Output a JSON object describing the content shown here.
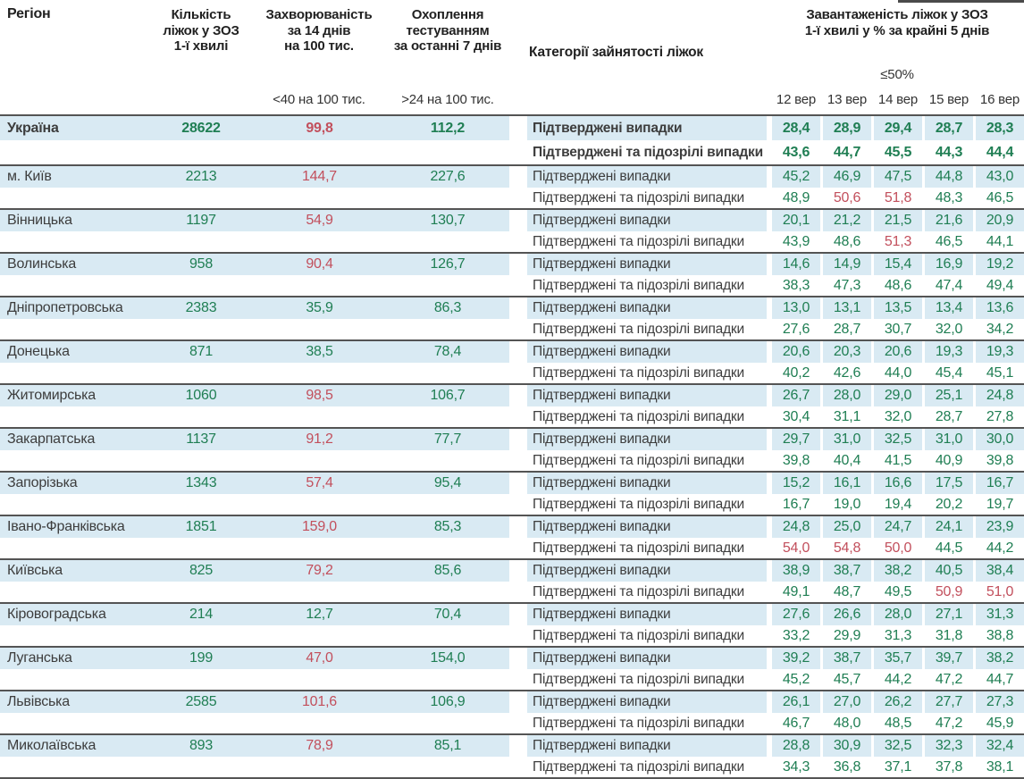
{
  "colors": {
    "positive_green": "#1f7e53",
    "alert_red": "#c24f5c",
    "row_highlight_blue": "#d9eaf3",
    "divider_dark": "#545454",
    "text_dark": "#3d3d3d"
  },
  "chart_data": {
    "type": "table",
    "title": "Завантаженість ліжок у ЗОЗ 1-ї хвилі",
    "header": {
      "region": "Регіон",
      "beds": "Кількість\nліжок у ЗОЗ\n1-ї хвилі",
      "incidence": "Захворюваність\nза 14 днів\nна 100 тис.",
      "testing": "Охоплення\nтестуванням\nза останні 7 днів",
      "categories": "Категорії зайнятості ліжок",
      "occupancy": "Завантаженість ліжок у ЗОЗ\n1-ї хвилі у % за крайні 5 днів",
      "incidence_threshold": "<40 на 100 тис.",
      "testing_threshold": ">24 на 100 тис.",
      "occupancy_threshold": "≤50%",
      "dates": [
        "12 вер",
        "13 вер",
        "14 вер",
        "15 вер",
        "16 вер"
      ]
    },
    "row_labels": {
      "confirmed": "Підтверджені випадки",
      "suspected": "Підтверджені та підозрілі випадки"
    },
    "rows": [
      {
        "region": "Україна",
        "bold": true,
        "beds": "28622",
        "incidence": "99,8",
        "incidence_red": true,
        "testing": "112,2",
        "confirmed": [
          "28,4",
          "28,9",
          "29,4",
          "28,7",
          "28,3"
        ],
        "suspected": [
          "43,6",
          "44,7",
          "45,5",
          "44,3",
          "44,4"
        ],
        "suspected_red": [
          false,
          false,
          false,
          false,
          false
        ]
      },
      {
        "region": "м. Київ",
        "beds": "2213",
        "incidence": "144,7",
        "incidence_red": true,
        "testing": "227,6",
        "confirmed": [
          "45,2",
          "46,9",
          "47,5",
          "44,8",
          "43,0"
        ],
        "suspected": [
          "48,9",
          "50,6",
          "51,8",
          "48,3",
          "46,5"
        ],
        "suspected_red": [
          false,
          true,
          true,
          false,
          false
        ]
      },
      {
        "region": "Вінницька",
        "beds": "1197",
        "incidence": "54,9",
        "incidence_red": true,
        "testing": "130,7",
        "confirmed": [
          "20,1",
          "21,2",
          "21,5",
          "21,6",
          "20,9"
        ],
        "suspected": [
          "43,9",
          "48,6",
          "51,3",
          "46,5",
          "44,1"
        ],
        "suspected_red": [
          false,
          false,
          true,
          false,
          false
        ]
      },
      {
        "region": "Волинська",
        "beds": "958",
        "incidence": "90,4",
        "incidence_red": true,
        "testing": "126,7",
        "confirmed": [
          "14,6",
          "14,9",
          "15,4",
          "16,9",
          "19,2"
        ],
        "suspected": [
          "38,3",
          "47,3",
          "48,6",
          "47,4",
          "49,4"
        ],
        "suspected_red": [
          false,
          false,
          false,
          false,
          false
        ]
      },
      {
        "region": "Дніпропетровська",
        "beds": "2383",
        "incidence": "35,9",
        "incidence_red": false,
        "testing": "86,3",
        "confirmed": [
          "13,0",
          "13,1",
          "13,5",
          "13,4",
          "13,6"
        ],
        "suspected": [
          "27,6",
          "28,7",
          "30,7",
          "32,0",
          "34,2"
        ],
        "suspected_red": [
          false,
          false,
          false,
          false,
          false
        ]
      },
      {
        "region": "Донецька",
        "beds": "871",
        "incidence": "38,5",
        "incidence_red": false,
        "testing": "78,4",
        "confirmed": [
          "20,6",
          "20,3",
          "20,6",
          "19,3",
          "19,3"
        ],
        "suspected": [
          "40,2",
          "42,6",
          "44,0",
          "45,4",
          "45,1"
        ],
        "suspected_red": [
          false,
          false,
          false,
          false,
          false
        ]
      },
      {
        "region": "Житомирська",
        "beds": "1060",
        "incidence": "98,5",
        "incidence_red": true,
        "testing": "106,7",
        "confirmed": [
          "26,7",
          "28,0",
          "29,0",
          "25,1",
          "24,8"
        ],
        "suspected": [
          "30,4",
          "31,1",
          "32,0",
          "28,7",
          "27,8"
        ],
        "suspected_red": [
          false,
          false,
          false,
          false,
          false
        ]
      },
      {
        "region": "Закарпатська",
        "beds": "1137",
        "incidence": "91,2",
        "incidence_red": true,
        "testing": "77,7",
        "confirmed": [
          "29,7",
          "31,0",
          "32,5",
          "31,0",
          "30,0"
        ],
        "suspected": [
          "39,8",
          "40,4",
          "41,5",
          "40,9",
          "39,8"
        ],
        "suspected_red": [
          false,
          false,
          false,
          false,
          false
        ]
      },
      {
        "region": "Запорізька",
        "beds": "1343",
        "incidence": "57,4",
        "incidence_red": true,
        "testing": "95,4",
        "confirmed": [
          "15,2",
          "16,1",
          "16,6",
          "17,5",
          "16,7"
        ],
        "suspected": [
          "16,7",
          "19,0",
          "19,4",
          "20,2",
          "19,7"
        ],
        "suspected_red": [
          false,
          false,
          false,
          false,
          false
        ]
      },
      {
        "region": "Івано-Франківська",
        "beds": "1851",
        "incidence": "159,0",
        "incidence_red": true,
        "testing": "85,3",
        "confirmed": [
          "24,8",
          "25,0",
          "24,7",
          "24,1",
          "23,9"
        ],
        "suspected": [
          "54,0",
          "54,8",
          "50,0",
          "44,5",
          "44,2"
        ],
        "suspected_red": [
          true,
          true,
          true,
          false,
          false
        ]
      },
      {
        "region": "Київська",
        "beds": "825",
        "incidence": "79,2",
        "incidence_red": true,
        "testing": "85,6",
        "confirmed": [
          "38,9",
          "38,7",
          "38,2",
          "40,5",
          "38,4"
        ],
        "suspected": [
          "49,1",
          "48,7",
          "49,5",
          "50,9",
          "51,0"
        ],
        "suspected_red": [
          false,
          false,
          false,
          true,
          true
        ]
      },
      {
        "region": "Кіровоградська",
        "beds": "214",
        "incidence": "12,7",
        "incidence_red": false,
        "testing": "70,4",
        "confirmed": [
          "27,6",
          "26,6",
          "28,0",
          "27,1",
          "31,3"
        ],
        "suspected": [
          "33,2",
          "29,9",
          "31,3",
          "31,8",
          "38,8"
        ],
        "suspected_red": [
          false,
          false,
          false,
          false,
          false
        ]
      },
      {
        "region": "Луганська",
        "beds": "199",
        "incidence": "47,0",
        "incidence_red": true,
        "testing": "154,0",
        "confirmed": [
          "39,2",
          "38,7",
          "35,7",
          "39,7",
          "38,2"
        ],
        "suspected": [
          "45,2",
          "45,7",
          "44,2",
          "47,2",
          "44,7"
        ],
        "suspected_red": [
          false,
          false,
          false,
          false,
          false
        ]
      },
      {
        "region": "Львівська",
        "beds": "2585",
        "incidence": "101,6",
        "incidence_red": true,
        "testing": "106,9",
        "confirmed": [
          "26,1",
          "27,0",
          "26,2",
          "27,7",
          "27,3"
        ],
        "suspected": [
          "46,7",
          "48,0",
          "48,5",
          "47,2",
          "45,9"
        ],
        "suspected_red": [
          false,
          false,
          false,
          false,
          false
        ]
      },
      {
        "region": "Миколаївська",
        "beds": "893",
        "incidence": "78,9",
        "incidence_red": true,
        "testing": "85,1",
        "confirmed": [
          "28,8",
          "30,9",
          "32,5",
          "32,3",
          "32,4"
        ],
        "suspected": [
          "34,3",
          "36,8",
          "37,1",
          "37,8",
          "38,1"
        ],
        "suspected_red": [
          false,
          false,
          false,
          false,
          false
        ]
      }
    ]
  }
}
